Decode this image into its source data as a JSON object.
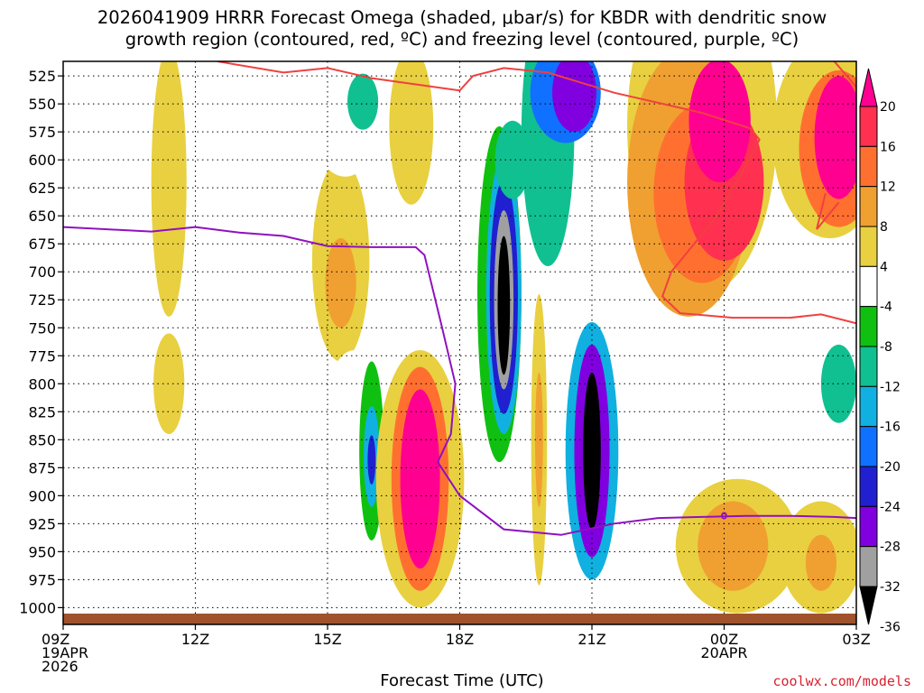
{
  "title_lines": [
    "2026041909 HRRR Forecast Omega (shaded, μbar/s) for KBDR with dendritic snow",
    "growth region (contoured, red, ºC) and freezing level (contoured, purple, ºC)"
  ],
  "xlabel": "Forecast Time (UTC)",
  "credit": "coolwx.com/models",
  "chart_data": {
    "type": "heatmap",
    "xlabel": "Forecast Time (UTC)",
    "ylabel": "",
    "x_ticks": [
      {
        "hour": 0,
        "lines": [
          "09Z",
          "19APR",
          "2026"
        ]
      },
      {
        "hour": 3,
        "lines": [
          "12Z"
        ]
      },
      {
        "hour": 6,
        "lines": [
          "15Z"
        ]
      },
      {
        "hour": 9,
        "lines": [
          "18Z"
        ]
      },
      {
        "hour": 12,
        "lines": [
          "21Z"
        ]
      },
      {
        "hour": 15,
        "lines": [
          "00Z",
          "20APR"
        ]
      },
      {
        "hour": 18,
        "lines": [
          "03Z"
        ]
      }
    ],
    "xlim": [
      0,
      18
    ],
    "y_ticks": [
      525,
      550,
      575,
      600,
      625,
      650,
      675,
      700,
      725,
      750,
      775,
      800,
      825,
      850,
      875,
      900,
      925,
      950,
      975,
      1000
    ],
    "ylim": [
      1015,
      512
    ],
    "grid": true,
    "colorbar": {
      "labels": [
        "20",
        "16",
        "12",
        "8",
        "4",
        "-4",
        "-8",
        "-12",
        "-16",
        "-20",
        "-24",
        "-28",
        "-32",
        "-36"
      ],
      "colors": [
        "#ff0090",
        "#ff3050",
        "#ff7030",
        "#f0a030",
        "#e8d040",
        "#ffffff",
        "#10c010",
        "#10c090",
        "#10b0e0",
        "#1070ff",
        "#2020d0",
        "#8000e0",
        "#a0a0a0",
        "#000000"
      ]
    },
    "omega_blobs": [
      {
        "cx": 2.4,
        "cy": 620,
        "rx": 0.4,
        "ry": 120,
        "v": 4
      },
      {
        "cx": 2.4,
        "cy": 800,
        "rx": 0.35,
        "ry": 45,
        "v": 4
      },
      {
        "cx": 3.1,
        "cy": 835,
        "rx": 0.2,
        "ry": 30,
        "v": -4
      },
      {
        "cx": 4.9,
        "cy": 630,
        "rx": 0.45,
        "ry": 40,
        "v": -4
      },
      {
        "cx": 5.2,
        "cy": 830,
        "rx": 0.3,
        "ry": 55,
        "v": -4
      },
      {
        "cx": 6.3,
        "cy": 690,
        "rx": 0.65,
        "ry": 90,
        "v": 4
      },
      {
        "cx": 6.3,
        "cy": 710,
        "rx": 0.35,
        "ry": 40,
        "v": 8
      },
      {
        "cx": 6.4,
        "cy": 560,
        "rx": 0.8,
        "ry": 55,
        "v": -4
      },
      {
        "cx": 6.8,
        "cy": 548,
        "rx": 0.35,
        "ry": 25,
        "v": -12
      },
      {
        "cx": 7.9,
        "cy": 570,
        "rx": 0.5,
        "ry": 70,
        "v": 4
      },
      {
        "cx": 6.6,
        "cy": 870,
        "rx": 0.85,
        "ry": 100,
        "v": -4
      },
      {
        "cx": 7.0,
        "cy": 860,
        "rx": 0.28,
        "ry": 80,
        "v": -8
      },
      {
        "cx": 7.0,
        "cy": 865,
        "rx": 0.18,
        "ry": 45,
        "v": -16
      },
      {
        "cx": 7.0,
        "cy": 868,
        "rx": 0.09,
        "ry": 22,
        "v": -24
      },
      {
        "cx": 8.1,
        "cy": 885,
        "rx": 1.0,
        "ry": 115,
        "v": 4
      },
      {
        "cx": 8.1,
        "cy": 885,
        "rx": 0.65,
        "ry": 100,
        "v": 12
      },
      {
        "cx": 8.1,
        "cy": 885,
        "rx": 0.45,
        "ry": 80,
        "v": 20
      },
      {
        "cx": 10.0,
        "cy": 640,
        "rx": 1.45,
        "ry": 180,
        "v": -4
      },
      {
        "cx": 9.9,
        "cy": 720,
        "rx": 0.5,
        "ry": 150,
        "v": -8
      },
      {
        "cx": 10.0,
        "cy": 720,
        "rx": 0.4,
        "ry": 125,
        "v": -16
      },
      {
        "cx": 10.0,
        "cy": 722,
        "rx": 0.32,
        "ry": 105,
        "v": -24
      },
      {
        "cx": 10.0,
        "cy": 725,
        "rx": 0.22,
        "ry": 80,
        "v": -32
      },
      {
        "cx": 10.0,
        "cy": 730,
        "rx": 0.14,
        "ry": 62,
        "v": -36
      },
      {
        "cx": 10.2,
        "cy": 600,
        "rx": 0.4,
        "ry": 35,
        "v": -12
      },
      {
        "cx": 11.0,
        "cy": 575,
        "rx": 0.6,
        "ry": 120,
        "v": -12
      },
      {
        "cx": 11.4,
        "cy": 540,
        "rx": 0.8,
        "ry": 45,
        "v": -20
      },
      {
        "cx": 11.6,
        "cy": 540,
        "rx": 0.5,
        "ry": 35,
        "v": -28
      },
      {
        "cx": 10.8,
        "cy": 850,
        "rx": 0.18,
        "ry": 130,
        "v": 4
      },
      {
        "cx": 10.8,
        "cy": 850,
        "rx": 0.09,
        "ry": 60,
        "v": 8
      },
      {
        "cx": 12.0,
        "cy": 860,
        "rx": 0.85,
        "ry": 130,
        "v": -4
      },
      {
        "cx": 12.0,
        "cy": 860,
        "rx": 0.6,
        "ry": 115,
        "v": -16
      },
      {
        "cx": 12.0,
        "cy": 860,
        "rx": 0.4,
        "ry": 95,
        "v": -28
      },
      {
        "cx": 12.0,
        "cy": 860,
        "rx": 0.2,
        "ry": 70,
        "v": -36
      },
      {
        "cx": 14.5,
        "cy": 570,
        "rx": 1.7,
        "ry": 150,
        "v": 4
      },
      {
        "cx": 14.2,
        "cy": 620,
        "rx": 1.4,
        "ry": 120,
        "v": 8
      },
      {
        "cx": 14.5,
        "cy": 630,
        "rx": 1.1,
        "ry": 80,
        "v": 12
      },
      {
        "cx": 15.0,
        "cy": 620,
        "rx": 0.9,
        "ry": 70,
        "v": 16
      },
      {
        "cx": 14.9,
        "cy": 565,
        "rx": 0.7,
        "ry": 55,
        "v": 20
      },
      {
        "cx": 17.4,
        "cy": 580,
        "rx": 1.3,
        "ry": 90,
        "v": 4
      },
      {
        "cx": 17.6,
        "cy": 590,
        "rx": 0.9,
        "ry": 70,
        "v": 12
      },
      {
        "cx": 17.6,
        "cy": 580,
        "rx": 0.55,
        "ry": 55,
        "v": 20
      },
      {
        "cx": 17.3,
        "cy": 790,
        "rx": 1.1,
        "ry": 75,
        "v": -4
      },
      {
        "cx": 17.6,
        "cy": 800,
        "rx": 0.4,
        "ry": 35,
        "v": -12
      },
      {
        "cx": 15.3,
        "cy": 945,
        "rx": 1.4,
        "ry": 60,
        "v": 4
      },
      {
        "cx": 15.2,
        "cy": 945,
        "rx": 0.8,
        "ry": 40,
        "v": 8
      },
      {
        "cx": 17.2,
        "cy": 955,
        "rx": 0.9,
        "ry": 50,
        "v": 4
      },
      {
        "cx": 17.2,
        "cy": 960,
        "rx": 0.35,
        "ry": 25,
        "v": 8
      }
    ],
    "freezing_level": [
      [
        0,
        660
      ],
      [
        1,
        662
      ],
      [
        2,
        664
      ],
      [
        3,
        660
      ],
      [
        4,
        665
      ],
      [
        5,
        668
      ],
      [
        6,
        677
      ],
      [
        7,
        678
      ],
      [
        8,
        678
      ],
      [
        8.2,
        685
      ],
      [
        8.6,
        750
      ],
      [
        8.9,
        800
      ],
      [
        8.8,
        845
      ],
      [
        8.5,
        870
      ],
      [
        9.0,
        900
      ],
      [
        10.0,
        930
      ],
      [
        11.3,
        935
      ],
      [
        12.5,
        925
      ],
      [
        13.5,
        920
      ],
      [
        14.5,
        919
      ],
      [
        15.5,
        918
      ],
      [
        16.5,
        918
      ],
      [
        17.5,
        919
      ],
      [
        18,
        920
      ]
    ],
    "dendritic_upper": [
      [
        3.5,
        512
      ],
      [
        5.0,
        522
      ],
      [
        6.0,
        518
      ],
      [
        7.0,
        527
      ],
      [
        9.0,
        538
      ],
      [
        9.3,
        525
      ],
      [
        10.0,
        518
      ],
      [
        11.0,
        522
      ],
      [
        12.5,
        540
      ],
      [
        14.5,
        558
      ],
      [
        15.6,
        572
      ],
      [
        15.8,
        582
      ],
      [
        15.5,
        605
      ],
      [
        14.8,
        652
      ],
      [
        13.8,
        700
      ],
      [
        13.6,
        722
      ],
      [
        14.0,
        737
      ],
      [
        15.2,
        741
      ],
      [
        16.5,
        741
      ],
      [
        17.2,
        738
      ],
      [
        18,
        746
      ]
    ],
    "dendritic_right": [
      [
        17.5,
        512
      ],
      [
        18,
        535
      ]
    ],
    "dendritic_vee": [
      [
        17.3,
        630
      ],
      [
        17.1,
        662
      ],
      [
        17.6,
        638
      ]
    ],
    "zero_label": {
      "hour": 15.0,
      "p": 918,
      "text": "0"
    }
  }
}
